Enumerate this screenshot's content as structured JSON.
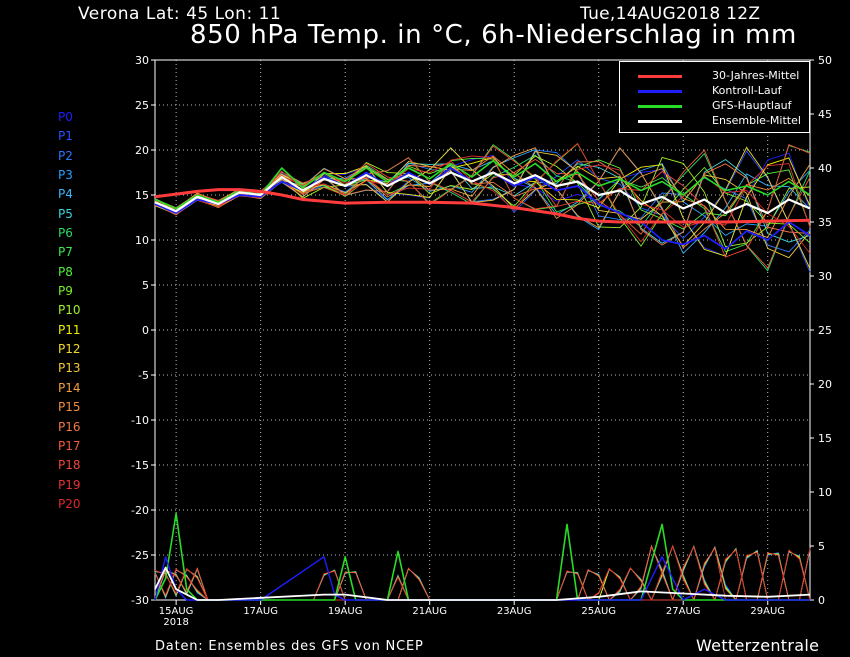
{
  "header": {
    "location": "Verona   Lat: 45 Lon: 11",
    "datetime": "Tue,14AUG2018 12Z",
    "title": "850 hPa Temp. in °C, 6h-Niederschlag in mm"
  },
  "footer": {
    "source": "Daten: Ensembles des GFS von NCEP",
    "brand": "Wetterzentrale"
  },
  "members": [
    {
      "name": "P0",
      "color": "#1e1eff"
    },
    {
      "name": "P1",
      "color": "#2850ff"
    },
    {
      "name": "P2",
      "color": "#2878ff"
    },
    {
      "name": "P3",
      "color": "#28a0ff"
    },
    {
      "name": "P4",
      "color": "#3cb4ff"
    },
    {
      "name": "P5",
      "color": "#3cd2dc"
    },
    {
      "name": "P6",
      "color": "#28dc64"
    },
    {
      "name": "P7",
      "color": "#3ce650"
    },
    {
      "name": "P8",
      "color": "#50f03c"
    },
    {
      "name": "P9",
      "color": "#78f028"
    },
    {
      "name": "P10",
      "color": "#a0f028"
    },
    {
      "name": "P11",
      "color": "#f0f000"
    },
    {
      "name": "P12",
      "color": "#f0dc28"
    },
    {
      "name": "P13",
      "color": "#f0c83c"
    },
    {
      "name": "P14",
      "color": "#f0a03c"
    },
    {
      "name": "P15",
      "color": "#f08c3c"
    },
    {
      "name": "P16",
      "color": "#f07846"
    },
    {
      "name": "P17",
      "color": "#f05a3c"
    },
    {
      "name": "P18",
      "color": "#f0463c"
    },
    {
      "name": "P19",
      "color": "#e63232"
    },
    {
      "name": "P20",
      "color": "#dc2828"
    }
  ],
  "chart_data": {
    "type": "line",
    "title": "850 hPa Temp. in °C, 6h-Niederschlag in mm",
    "x_unit": "days since 2018-08-14 12Z",
    "xlim": [
      0.5,
      16
    ],
    "x_ticks": [
      {
        "label": "15AUG",
        "sublabel": "2018",
        "x": 1
      },
      {
        "label": "17AUG",
        "x": 3
      },
      {
        "label": "19AUG",
        "x": 5
      },
      {
        "label": "21AUG",
        "x": 7
      },
      {
        "label": "23AUG",
        "x": 9
      },
      {
        "label": "25AUG",
        "x": 11
      },
      {
        "label": "27AUG",
        "x": 13
      },
      {
        "label": "29AUG",
        "x": 15
      }
    ],
    "y_left": {
      "label": "°C",
      "lim": [
        -30,
        30
      ],
      "ticks": [
        -30,
        -25,
        -20,
        -15,
        -10,
        -5,
        0,
        5,
        10,
        15,
        20,
        25,
        30
      ]
    },
    "y_right": {
      "label": "mm",
      "lim": [
        0,
        50
      ],
      "ticks": [
        0,
        5,
        10,
        15,
        20,
        25,
        30,
        35,
        40,
        45,
        50
      ]
    },
    "grid": true,
    "legend": {
      "placement": "top-right",
      "entries": [
        {
          "label": "30-Jahres-Mittel",
          "color": "#ff3c3c"
        },
        {
          "label": "Kontroll-Lauf",
          "color": "#1e1eff"
        },
        {
          "label": "GFS-Hauptlauf",
          "color": "#28dc28"
        },
        {
          "label": "Ensemble-Mittel",
          "color": "#ffffff"
        }
      ]
    },
    "climate_mean": {
      "x": [
        0.5,
        1,
        1.5,
        2,
        2.5,
        3,
        3.5,
        4,
        5,
        6,
        7,
        8,
        9,
        10,
        10.5,
        11,
        11.5,
        12,
        13,
        14,
        15,
        16
      ],
      "y": [
        14.8,
        15.1,
        15.4,
        15.6,
        15.6,
        15.4,
        15.0,
        14.5,
        14.1,
        14.2,
        14.2,
        14.1,
        13.6,
        12.9,
        12.4,
        12.1,
        12.0,
        12.0,
        12.0,
        12.0,
        12.1,
        12.2
      ]
    },
    "control_run": {
      "x": [
        0.5,
        1,
        1.5,
        2,
        2.5,
        3,
        3.5,
        4,
        4.5,
        5,
        5.5,
        6,
        6.5,
        7,
        7.5,
        8,
        8.5,
        9,
        9.5,
        10,
        10.5,
        11,
        11.5,
        12,
        12.5,
        13,
        13.5,
        14,
        14.5,
        15,
        15.5,
        16
      ],
      "y": [
        14,
        13,
        14.5,
        14,
        15,
        14.8,
        16.5,
        15.5,
        17,
        16,
        17.5,
        16,
        17.5,
        16.2,
        18,
        16.5,
        17.5,
        16,
        17,
        15.5,
        16,
        14,
        13,
        12,
        10,
        9.5,
        10.5,
        9,
        11,
        10,
        12,
        10.5
      ]
    },
    "main_run": {
      "x": [
        0.5,
        1,
        1.5,
        2,
        2.5,
        3,
        3.5,
        4,
        4.5,
        5,
        5.5,
        6,
        6.5,
        7,
        7.5,
        8,
        8.5,
        9,
        9.5,
        10,
        10.5,
        11,
        11.5,
        12,
        12.5,
        13,
        13.5,
        14,
        14.5,
        15,
        15.5,
        16
      ],
      "y": [
        14.5,
        13.5,
        15,
        14.2,
        15.5,
        15,
        18,
        15.8,
        17.5,
        16.5,
        18,
        16.5,
        18,
        16.8,
        18.5,
        17,
        18.8,
        17,
        18.5,
        16.5,
        17.5,
        16,
        16.8,
        15.5,
        16.5,
        15,
        17,
        15.5,
        16,
        15,
        16.5,
        15
      ]
    },
    "ensemble_mean": {
      "x": [
        0.5,
        1,
        1.5,
        2,
        2.5,
        3,
        3.5,
        4,
        4.5,
        5,
        5.5,
        6,
        6.5,
        7,
        7.5,
        8,
        8.5,
        9,
        9.5,
        10,
        10.5,
        11,
        11.5,
        12,
        12.5,
        13,
        13.5,
        14,
        14.5,
        15,
        15.5,
        16
      ],
      "y": [
        14.2,
        13.2,
        14.8,
        14,
        15.3,
        15,
        17,
        15.5,
        16.8,
        16,
        17.2,
        16,
        17.2,
        16.3,
        17.5,
        16.5,
        17.5,
        16.3,
        17.2,
        16,
        16.5,
        15,
        15.5,
        14,
        14.8,
        13.5,
        14.5,
        13,
        14,
        13,
        14.5,
        13.5
      ]
    },
    "precip_mean": {
      "x": [
        0.5,
        0.75,
        1,
        1.25,
        1.5,
        2,
        4.5,
        5,
        6,
        8,
        10,
        11,
        12,
        13,
        14,
        15,
        16
      ],
      "y": [
        1,
        3,
        1,
        0.5,
        0,
        0,
        0.5,
        0.5,
        0,
        0,
        0,
        0.3,
        0.8,
        0.6,
        0.4,
        0.3,
        0.5
      ]
    },
    "precip_control": {
      "x": [
        0.5,
        0.75,
        1,
        1.25,
        1.5,
        3,
        4.5,
        4.75,
        5,
        6,
        10,
        11,
        12,
        12.5,
        13,
        13.5,
        14,
        16
      ],
      "y": [
        0,
        4,
        1,
        0,
        0,
        0,
        4,
        0.5,
        0,
        0,
        0,
        0,
        0,
        4,
        0,
        1,
        0,
        0
      ]
    },
    "precip_main": {
      "x": [
        0.5,
        0.75,
        1,
        1.25,
        1.5,
        4.75,
        5,
        5.25,
        6,
        6.25,
        6.5,
        9,
        10,
        10.25,
        10.5,
        11,
        12,
        12.5,
        12.75,
        13,
        14,
        16
      ],
      "y": [
        0,
        2,
        8,
        1,
        0,
        0,
        4,
        0,
        0,
        4.5,
        0,
        0,
        0,
        7,
        0,
        0,
        0,
        7,
        1,
        0,
        0,
        0
      ]
    }
  }
}
